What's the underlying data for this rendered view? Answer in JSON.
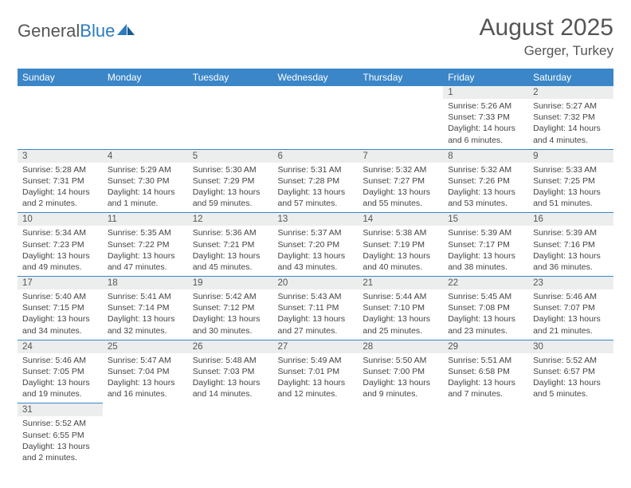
{
  "logo": {
    "text1": "General",
    "text2": "Blue"
  },
  "title": "August 2025",
  "location": "Gerger, Turkey",
  "colors": {
    "header_bg": "#3a86c8",
    "header_text": "#ffffff",
    "cell_border": "#3a86c8",
    "daynum_bg": "#eceded",
    "text": "#444444",
    "title_text": "#555555",
    "logo_blue": "#2b7bbf"
  },
  "typography": {
    "title_fontsize": 30,
    "location_fontsize": 17,
    "weekday_fontsize": 12,
    "daynum_fontsize": 11.5,
    "cell_fontsize": 10.5
  },
  "weekdays": [
    "Sunday",
    "Monday",
    "Tuesday",
    "Wednesday",
    "Thursday",
    "Friday",
    "Saturday"
  ],
  "weeks": [
    [
      null,
      null,
      null,
      null,
      null,
      {
        "n": "1",
        "sunrise": "Sunrise: 5:26 AM",
        "sunset": "Sunset: 7:33 PM",
        "daylight": "Daylight: 14 hours and 6 minutes."
      },
      {
        "n": "2",
        "sunrise": "Sunrise: 5:27 AM",
        "sunset": "Sunset: 7:32 PM",
        "daylight": "Daylight: 14 hours and 4 minutes."
      }
    ],
    [
      {
        "n": "3",
        "sunrise": "Sunrise: 5:28 AM",
        "sunset": "Sunset: 7:31 PM",
        "daylight": "Daylight: 14 hours and 2 minutes."
      },
      {
        "n": "4",
        "sunrise": "Sunrise: 5:29 AM",
        "sunset": "Sunset: 7:30 PM",
        "daylight": "Daylight: 14 hours and 1 minute."
      },
      {
        "n": "5",
        "sunrise": "Sunrise: 5:30 AM",
        "sunset": "Sunset: 7:29 PM",
        "daylight": "Daylight: 13 hours and 59 minutes."
      },
      {
        "n": "6",
        "sunrise": "Sunrise: 5:31 AM",
        "sunset": "Sunset: 7:28 PM",
        "daylight": "Daylight: 13 hours and 57 minutes."
      },
      {
        "n": "7",
        "sunrise": "Sunrise: 5:32 AM",
        "sunset": "Sunset: 7:27 PM",
        "daylight": "Daylight: 13 hours and 55 minutes."
      },
      {
        "n": "8",
        "sunrise": "Sunrise: 5:32 AM",
        "sunset": "Sunset: 7:26 PM",
        "daylight": "Daylight: 13 hours and 53 minutes."
      },
      {
        "n": "9",
        "sunrise": "Sunrise: 5:33 AM",
        "sunset": "Sunset: 7:25 PM",
        "daylight": "Daylight: 13 hours and 51 minutes."
      }
    ],
    [
      {
        "n": "10",
        "sunrise": "Sunrise: 5:34 AM",
        "sunset": "Sunset: 7:23 PM",
        "daylight": "Daylight: 13 hours and 49 minutes."
      },
      {
        "n": "11",
        "sunrise": "Sunrise: 5:35 AM",
        "sunset": "Sunset: 7:22 PM",
        "daylight": "Daylight: 13 hours and 47 minutes."
      },
      {
        "n": "12",
        "sunrise": "Sunrise: 5:36 AM",
        "sunset": "Sunset: 7:21 PM",
        "daylight": "Daylight: 13 hours and 45 minutes."
      },
      {
        "n": "13",
        "sunrise": "Sunrise: 5:37 AM",
        "sunset": "Sunset: 7:20 PM",
        "daylight": "Daylight: 13 hours and 43 minutes."
      },
      {
        "n": "14",
        "sunrise": "Sunrise: 5:38 AM",
        "sunset": "Sunset: 7:19 PM",
        "daylight": "Daylight: 13 hours and 40 minutes."
      },
      {
        "n": "15",
        "sunrise": "Sunrise: 5:39 AM",
        "sunset": "Sunset: 7:17 PM",
        "daylight": "Daylight: 13 hours and 38 minutes."
      },
      {
        "n": "16",
        "sunrise": "Sunrise: 5:39 AM",
        "sunset": "Sunset: 7:16 PM",
        "daylight": "Daylight: 13 hours and 36 minutes."
      }
    ],
    [
      {
        "n": "17",
        "sunrise": "Sunrise: 5:40 AM",
        "sunset": "Sunset: 7:15 PM",
        "daylight": "Daylight: 13 hours and 34 minutes."
      },
      {
        "n": "18",
        "sunrise": "Sunrise: 5:41 AM",
        "sunset": "Sunset: 7:14 PM",
        "daylight": "Daylight: 13 hours and 32 minutes."
      },
      {
        "n": "19",
        "sunrise": "Sunrise: 5:42 AM",
        "sunset": "Sunset: 7:12 PM",
        "daylight": "Daylight: 13 hours and 30 minutes."
      },
      {
        "n": "20",
        "sunrise": "Sunrise: 5:43 AM",
        "sunset": "Sunset: 7:11 PM",
        "daylight": "Daylight: 13 hours and 27 minutes."
      },
      {
        "n": "21",
        "sunrise": "Sunrise: 5:44 AM",
        "sunset": "Sunset: 7:10 PM",
        "daylight": "Daylight: 13 hours and 25 minutes."
      },
      {
        "n": "22",
        "sunrise": "Sunrise: 5:45 AM",
        "sunset": "Sunset: 7:08 PM",
        "daylight": "Daylight: 13 hours and 23 minutes."
      },
      {
        "n": "23",
        "sunrise": "Sunrise: 5:46 AM",
        "sunset": "Sunset: 7:07 PM",
        "daylight": "Daylight: 13 hours and 21 minutes."
      }
    ],
    [
      {
        "n": "24",
        "sunrise": "Sunrise: 5:46 AM",
        "sunset": "Sunset: 7:05 PM",
        "daylight": "Daylight: 13 hours and 19 minutes."
      },
      {
        "n": "25",
        "sunrise": "Sunrise: 5:47 AM",
        "sunset": "Sunset: 7:04 PM",
        "daylight": "Daylight: 13 hours and 16 minutes."
      },
      {
        "n": "26",
        "sunrise": "Sunrise: 5:48 AM",
        "sunset": "Sunset: 7:03 PM",
        "daylight": "Daylight: 13 hours and 14 minutes."
      },
      {
        "n": "27",
        "sunrise": "Sunrise: 5:49 AM",
        "sunset": "Sunset: 7:01 PM",
        "daylight": "Daylight: 13 hours and 12 minutes."
      },
      {
        "n": "28",
        "sunrise": "Sunrise: 5:50 AM",
        "sunset": "Sunset: 7:00 PM",
        "daylight": "Daylight: 13 hours and 9 minutes."
      },
      {
        "n": "29",
        "sunrise": "Sunrise: 5:51 AM",
        "sunset": "Sunset: 6:58 PM",
        "daylight": "Daylight: 13 hours and 7 minutes."
      },
      {
        "n": "30",
        "sunrise": "Sunrise: 5:52 AM",
        "sunset": "Sunset: 6:57 PM",
        "daylight": "Daylight: 13 hours and 5 minutes."
      }
    ],
    [
      {
        "n": "31",
        "sunrise": "Sunrise: 5:52 AM",
        "sunset": "Sunset: 6:55 PM",
        "daylight": "Daylight: 13 hours and 2 minutes."
      },
      null,
      null,
      null,
      null,
      null,
      null
    ]
  ]
}
